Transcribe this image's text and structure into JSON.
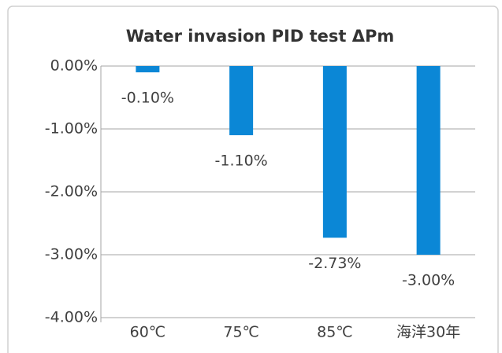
{
  "chart_data": {
    "type": "bar",
    "title": "Water invasion PID test ΔPm",
    "categories": [
      "60℃",
      "75℃",
      "85℃",
      "海洋30年"
    ],
    "values": [
      -0.1,
      -1.1,
      -2.73,
      -3.0
    ],
    "value_labels": [
      "-0.10%",
      "-1.10%",
      "-2.73%",
      "-3.00%"
    ],
    "color": "#0b87d6",
    "ylim": [
      -4,
      0
    ],
    "yticks": [
      {
        "value": 0,
        "label": "0.00%"
      },
      {
        "value": -1,
        "label": "-1.00%"
      },
      {
        "value": -2,
        "label": "-2.00%"
      },
      {
        "value": -3,
        "label": "-3.00%"
      },
      {
        "value": -4,
        "label": "-4.00%"
      }
    ],
    "grid": true
  }
}
